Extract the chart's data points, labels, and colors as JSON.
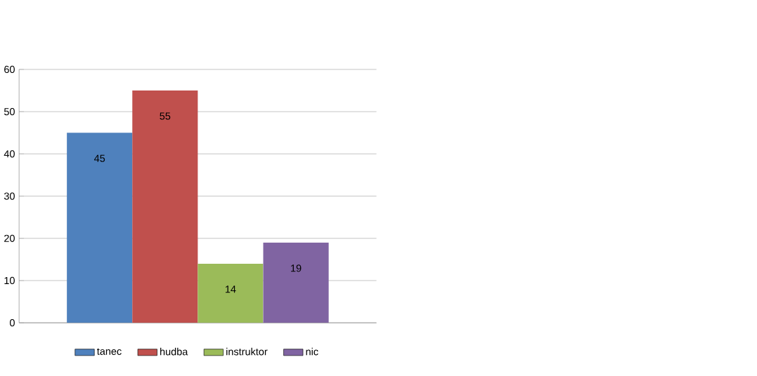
{
  "chart_data": {
    "type": "bar",
    "categories": [
      null
    ],
    "series": [
      {
        "name": "tanec",
        "color": "#4f81bd",
        "values": [
          45
        ]
      },
      {
        "name": "hudba",
        "color": "#c0504d",
        "values": [
          55
        ]
      },
      {
        "name": "instruktor",
        "color": "#9bbb59",
        "values": [
          14
        ]
      },
      {
        "name": "nic",
        "color": "#8064a2",
        "values": [
          19
        ]
      }
    ],
    "ylim": [
      0,
      60
    ],
    "yticks": [
      0,
      10,
      20,
      30,
      40,
      50,
      60
    ],
    "grid": "y",
    "legend": "bottom",
    "data_labels": true
  }
}
